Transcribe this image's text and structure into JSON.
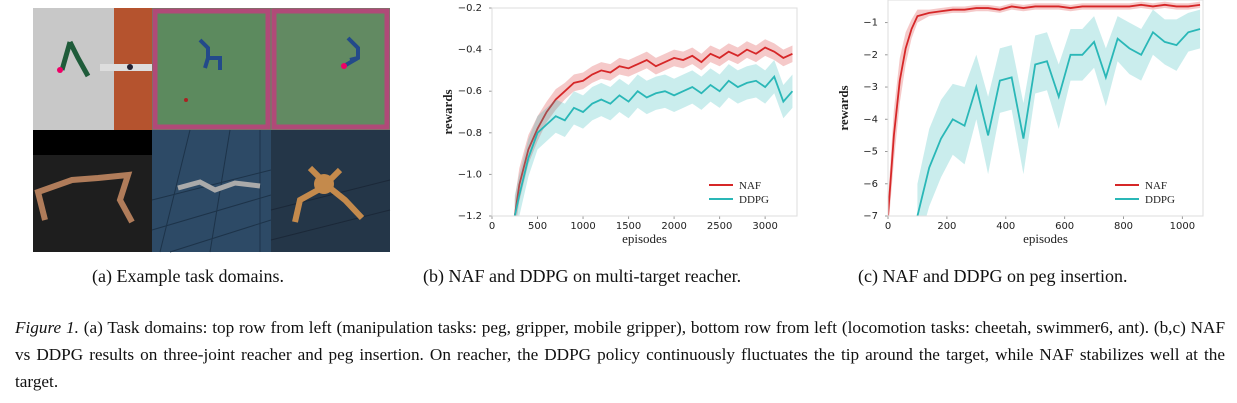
{
  "image_panel": {
    "caption": "(a) Example task domains."
  },
  "figure_caption": {
    "label": "Figure 1.",
    "text": "(a) Task domains: top row from left (manipulation tasks: peg, gripper, mobile gripper), bottom row from left (locomotion tasks: cheetah, swimmer6, ant). (b,c) NAF vs DDPG results on three-joint reacher and peg insertion. On reacher, the DDPG policy continuously fluctuates the tip around the target, while NAF stabilizes well at the target."
  },
  "chart_data": [
    {
      "type": "line",
      "caption": "(b) NAF and DDPG on multi-target reacher.",
      "xlabel": "episodes",
      "ylabel": "rewards",
      "x": [
        250,
        300,
        400,
        500,
        600,
        700,
        800,
        900,
        1000,
        1100,
        1200,
        1300,
        1400,
        1500,
        1600,
        1700,
        1800,
        1900,
        2000,
        2100,
        2200,
        2300,
        2400,
        2500,
        2600,
        2700,
        2800,
        2900,
        3000,
        3100,
        3200,
        3300
      ],
      "series": [
        {
          "name": "NAF",
          "color": "#d62728",
          "values": [
            -1.2,
            -1.05,
            -0.88,
            -0.78,
            -0.7,
            -0.64,
            -0.6,
            -0.56,
            -0.55,
            -0.52,
            -0.5,
            -0.51,
            -0.48,
            -0.49,
            -0.47,
            -0.45,
            -0.48,
            -0.46,
            -0.44,
            -0.45,
            -0.43,
            -0.46,
            -0.42,
            -0.44,
            -0.41,
            -0.43,
            -0.4,
            -0.42,
            -0.39,
            -0.41,
            -0.44,
            -0.42
          ],
          "errors": [
            0.08,
            0.08,
            0.07,
            0.06,
            0.05,
            0.05,
            0.04,
            0.04,
            0.04,
            0.04,
            0.04,
            0.04,
            0.04,
            0.04,
            0.04,
            0.04,
            0.04,
            0.04,
            0.04,
            0.04,
            0.04,
            0.04,
            0.04,
            0.04,
            0.04,
            0.04,
            0.04,
            0.04,
            0.04,
            0.04,
            0.04,
            0.04
          ]
        },
        {
          "name": "DDPG",
          "color": "#2ab7b7",
          "values": [
            -1.2,
            -1.1,
            -0.92,
            -0.8,
            -0.76,
            -0.72,
            -0.74,
            -0.68,
            -0.7,
            -0.66,
            -0.64,
            -0.66,
            -0.62,
            -0.65,
            -0.6,
            -0.63,
            -0.61,
            -0.6,
            -0.62,
            -0.6,
            -0.58,
            -0.61,
            -0.57,
            -0.6,
            -0.55,
            -0.58,
            -0.56,
            -0.55,
            -0.58,
            -0.53,
            -0.65,
            -0.6
          ],
          "errors": [
            0.1,
            0.1,
            0.09,
            0.08,
            0.08,
            0.08,
            0.08,
            0.08,
            0.08,
            0.08,
            0.08,
            0.08,
            0.08,
            0.08,
            0.08,
            0.08,
            0.08,
            0.08,
            0.08,
            0.08,
            0.08,
            0.08,
            0.08,
            0.08,
            0.08,
            0.08,
            0.08,
            0.08,
            0.08,
            0.08,
            0.08,
            0.08
          ]
        }
      ],
      "xlim": [
        0,
        3350
      ],
      "ylim": [
        -1.2,
        -0.2
      ],
      "xticks": [
        0,
        500,
        1000,
        1500,
        2000,
        2500,
        3000
      ],
      "yticks": [
        {
          "value": -1.2,
          "label": "−1.2"
        },
        {
          "value": -1.0,
          "label": "−1.0"
        },
        {
          "value": -0.8,
          "label": "−0.8"
        },
        {
          "value": -0.6,
          "label": "−0.6"
        },
        {
          "value": -0.4,
          "label": "−0.4"
        },
        {
          "value": -0.2,
          "label": "−0.2"
        }
      ],
      "legend": "lower right"
    },
    {
      "type": "line",
      "caption": "(c) NAF and DDPG on peg insertion.",
      "xlabel": "episodes",
      "ylabel": "rewards",
      "x": [
        0,
        20,
        40,
        60,
        80,
        100,
        140,
        180,
        220,
        260,
        300,
        340,
        380,
        420,
        460,
        500,
        540,
        580,
        620,
        660,
        700,
        740,
        780,
        820,
        860,
        900,
        940,
        980,
        1020,
        1060
      ],
      "series": [
        {
          "name": "NAF",
          "color": "#d62728",
          "values": [
            -7,
            -4.5,
            -2.8,
            -1.8,
            -1.2,
            -0.8,
            -0.7,
            -0.65,
            -0.6,
            -0.6,
            -0.55,
            -0.55,
            -0.6,
            -0.5,
            -0.55,
            -0.5,
            -0.5,
            -0.5,
            -0.55,
            -0.5,
            -0.5,
            -0.5,
            -0.5,
            -0.5,
            -0.45,
            -0.5,
            -0.45,
            -0.5,
            -0.5,
            -0.45
          ],
          "errors": [
            0.5,
            0.8,
            0.7,
            0.5,
            0.3,
            0.2,
            0.1,
            0.1,
            0.1,
            0.1,
            0.1,
            0.1,
            0.1,
            0.1,
            0.1,
            0.1,
            0.1,
            0.1,
            0.1,
            0.1,
            0.1,
            0.1,
            0.1,
            0.1,
            0.1,
            0.1,
            0.1,
            0.1,
            0.1,
            0.1
          ]
        },
        {
          "name": "DDPG",
          "color": "#2ab7b7",
          "values": [
            null,
            null,
            null,
            null,
            null,
            -7,
            -5.5,
            -4.6,
            -4,
            -4.2,
            -3,
            -4.5,
            -2.8,
            -2.7,
            -4.6,
            -2.3,
            -2.2,
            -3.3,
            -2,
            -2,
            -1.6,
            -2.7,
            -1.5,
            -1.8,
            -2,
            -1.3,
            -1.6,
            -1.7,
            -1.3,
            -1.2
          ],
          "errors": [
            null,
            null,
            null,
            null,
            null,
            1,
            1.2,
            1.2,
            1.1,
            1.2,
            1,
            1.2,
            1,
            1,
            1.1,
            0.9,
            0.9,
            1,
            0.8,
            0.8,
            0.8,
            0.9,
            0.7,
            0.8,
            0.8,
            0.7,
            0.7,
            0.8,
            0.6,
            0.6
          ]
        }
      ],
      "xlim": [
        0,
        1070
      ],
      "ylim": [
        -7,
        -0.3
      ],
      "xticks": [
        0,
        200,
        400,
        600,
        800,
        1000
      ],
      "yticks": [
        {
          "value": -7,
          "label": "−7"
        },
        {
          "value": -6,
          "label": "−6"
        },
        {
          "value": -5,
          "label": "−5"
        },
        {
          "value": -4,
          "label": "−4"
        },
        {
          "value": -3,
          "label": "−3"
        },
        {
          "value": -2,
          "label": "−2"
        },
        {
          "value": -1,
          "label": "−1"
        }
      ],
      "legend": "lower right"
    }
  ]
}
